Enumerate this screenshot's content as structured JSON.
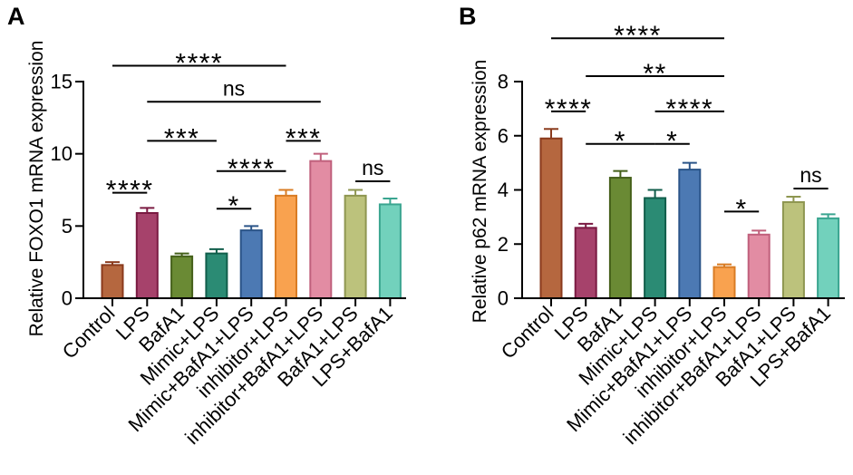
{
  "chart_data": [
    {
      "panel": "A",
      "type": "bar",
      "ylabel": "Relative FOXO1 mRNA expression",
      "ylim": [
        0,
        15
      ],
      "yticks": [
        0,
        5,
        10,
        15
      ],
      "categories": [
        "Control",
        "LPS",
        "BafA1",
        "Mimic+LPS",
        "Mimic+BafA1+LPS",
        "inhibitor+LPS",
        "inhibitor+BafA1+LPS",
        "BafA1+LPS",
        "LPS+BafA1"
      ],
      "values": [
        2.3,
        5.9,
        2.9,
        3.1,
        4.7,
        7.1,
        9.5,
        7.1,
        6.5
      ],
      "errors": [
        0.2,
        0.35,
        0.2,
        0.3,
        0.3,
        0.4,
        0.5,
        0.4,
        0.4
      ],
      "colors": [
        "#b5673f",
        "#a6426b",
        "#6a8a34",
        "#2b8b74",
        "#4c79b3",
        "#f9a24f",
        "#e28ca3",
        "#bcc27c",
        "#72d1bc"
      ],
      "edge_colors": [
        "#8a3a1c",
        "#7a1a42",
        "#45601a",
        "#115e4b",
        "#2a5488",
        "#d97c24",
        "#c0607c",
        "#8e9650",
        "#3aa590"
      ],
      "significance": [
        {
          "between": [
            0,
            5
          ],
          "label": "****",
          "level": 16.1
        },
        {
          "between": [
            1,
            6
          ],
          "label": "ns",
          "level": 13.6
        },
        {
          "between": [
            1,
            3
          ],
          "label": "***",
          "level": 10.9
        },
        {
          "between": [
            5,
            6
          ],
          "label": "***",
          "level": 10.9
        },
        {
          "between": [
            3,
            5
          ],
          "label": "****",
          "level": 8.8
        },
        {
          "between": [
            7,
            8
          ],
          "label": "ns",
          "level": 8.1
        },
        {
          "between": [
            0,
            1
          ],
          "label": "****",
          "level": 7.3
        },
        {
          "between": [
            3,
            4
          ],
          "label": "*",
          "level": 6.2
        }
      ]
    },
    {
      "panel": "B",
      "type": "bar",
      "ylabel": "Relative p62 mRNA expression",
      "ylim": [
        0,
        8
      ],
      "yticks": [
        0,
        2,
        4,
        6,
        8
      ],
      "categories": [
        "Control",
        "LPS",
        "BafA1",
        "Mimic+LPS",
        "Mimic+BafA1+LPS",
        "inhibitor+LPS",
        "inhibitor+BafA1+LPS",
        "BafA1+LPS",
        "LPS+BafA1"
      ],
      "values": [
        5.9,
        2.6,
        4.45,
        3.7,
        4.75,
        1.15,
        2.35,
        3.55,
        2.95
      ],
      "errors": [
        0.35,
        0.15,
        0.25,
        0.3,
        0.25,
        0.1,
        0.15,
        0.2,
        0.15
      ],
      "colors": [
        "#b5673f",
        "#a6426b",
        "#6a8a34",
        "#2b8b74",
        "#4c79b3",
        "#f9a24f",
        "#e28ca3",
        "#bcc27c",
        "#72d1bc"
      ],
      "edge_colors": [
        "#8a3a1c",
        "#7a1a42",
        "#45601a",
        "#115e4b",
        "#2a5488",
        "#d97c24",
        "#c0607c",
        "#8e9650",
        "#3aa590"
      ],
      "significance": [
        {
          "between": [
            0,
            5
          ],
          "label": "****",
          "level": 9.6
        },
        {
          "between": [
            1,
            5
          ],
          "label": "**",
          "level": 8.2
        },
        {
          "between": [
            0,
            1
          ],
          "label": "****",
          "level": 6.9
        },
        {
          "between": [
            3,
            5
          ],
          "label": "****",
          "level": 6.9
        },
        {
          "between": [
            1,
            3
          ],
          "label": "*",
          "level": 5.7
        },
        {
          "between": [
            3,
            4
          ],
          "label": "*",
          "level": 5.7
        },
        {
          "between": [
            7,
            8
          ],
          "label": "ns",
          "level": 4.05
        },
        {
          "between": [
            5,
            6
          ],
          "label": "*",
          "level": 3.2
        }
      ]
    }
  ]
}
